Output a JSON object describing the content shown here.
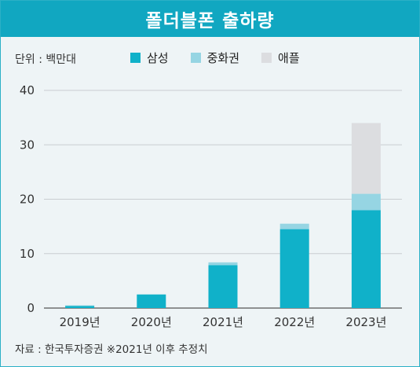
{
  "title": "폴더블폰 출하량",
  "unit_label": "단위 : 백만대",
  "source": "자료 : 한국투자증권 ※2021년 이후 추정치",
  "colors": {
    "title_bg": "#11a7c1",
    "samsung": "#10b1c9",
    "china": "#96d5e3",
    "apple": "#dcdde0"
  },
  "chart_data": {
    "type": "bar",
    "stacked": true,
    "categories": [
      "2019년",
      "2020년",
      "2021년",
      "2022년",
      "2023년"
    ],
    "series": [
      {
        "name": "삼성",
        "values": [
          0.4,
          2.5,
          7.9,
          14.5,
          18.0
        ]
      },
      {
        "name": "중화권",
        "values": [
          0.1,
          0,
          0.5,
          1.0,
          3.0
        ]
      },
      {
        "name": "애플",
        "values": [
          0,
          0,
          0,
          0,
          13.0
        ]
      }
    ],
    "y_ticks": [
      "0",
      "10",
      "20",
      "30",
      "40"
    ],
    "ylim": [
      0,
      40
    ],
    "grid": true,
    "legend_position": "top"
  }
}
